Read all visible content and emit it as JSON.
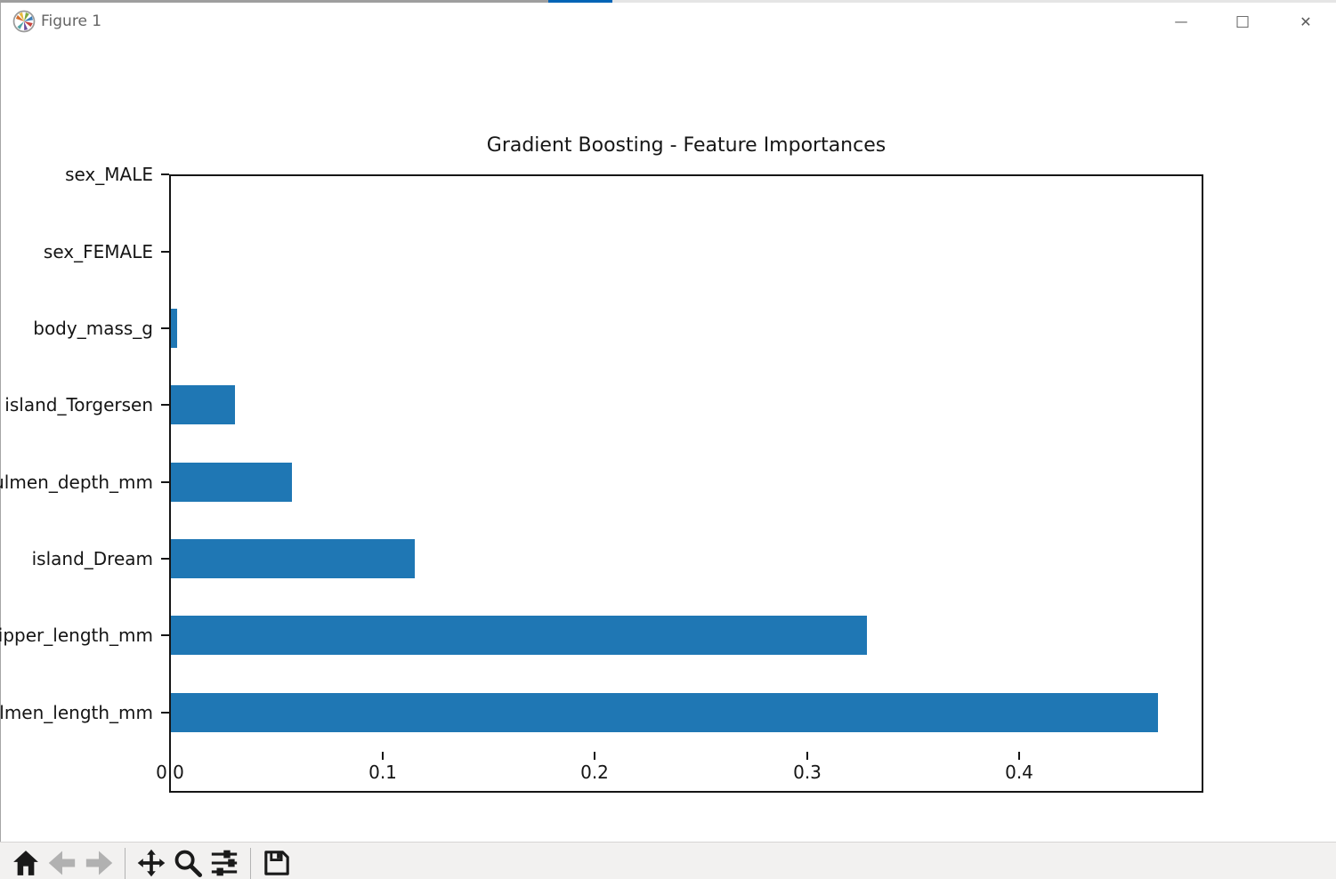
{
  "window": {
    "title": "Figure 1",
    "controls": {
      "minimize_glyph": "—",
      "maximize_glyph": "□",
      "close_glyph": "✕"
    },
    "top_edge": {
      "left_color": "#9e9e9e",
      "accent_color": "#0064b6",
      "right_color": "#e5e5e5"
    }
  },
  "toolbar": {
    "buttons": [
      {
        "id": "home",
        "enabled": true
      },
      {
        "id": "back",
        "enabled": false
      },
      {
        "id": "forward",
        "enabled": false
      },
      {
        "id": "pan",
        "enabled": true
      },
      {
        "id": "zoom-to-rect",
        "enabled": true
      },
      {
        "id": "configure-subplots",
        "enabled": true
      },
      {
        "id": "save",
        "enabled": true
      }
    ]
  },
  "chart_data": {
    "type": "bar",
    "orientation": "horizontal",
    "title": "Gradient Boosting - Feature Importances",
    "categories_top_to_bottom": [
      "sex_MALE",
      "sex_FEMALE",
      "body_mass_g",
      "island_Torgersen",
      "culmen_depth_mm",
      "island_Dream",
      "flipper_length_mm",
      "culmen_length_mm"
    ],
    "values_top_to_bottom": [
      0.0,
      0.0,
      0.003,
      0.03,
      0.057,
      0.115,
      0.328,
      0.465
    ],
    "xtick_labels": [
      "0.0",
      "0.1",
      "0.2",
      "0.3",
      "0.4"
    ],
    "xtick_values": [
      0.0,
      0.1,
      0.2,
      0.3,
      0.4
    ],
    "xlim": [
      0,
      0.486
    ],
    "ylabel": "",
    "xlabel": "",
    "grid": false,
    "legend": false,
    "bar_color": "#1f77b4",
    "spine_color": "#151515"
  }
}
